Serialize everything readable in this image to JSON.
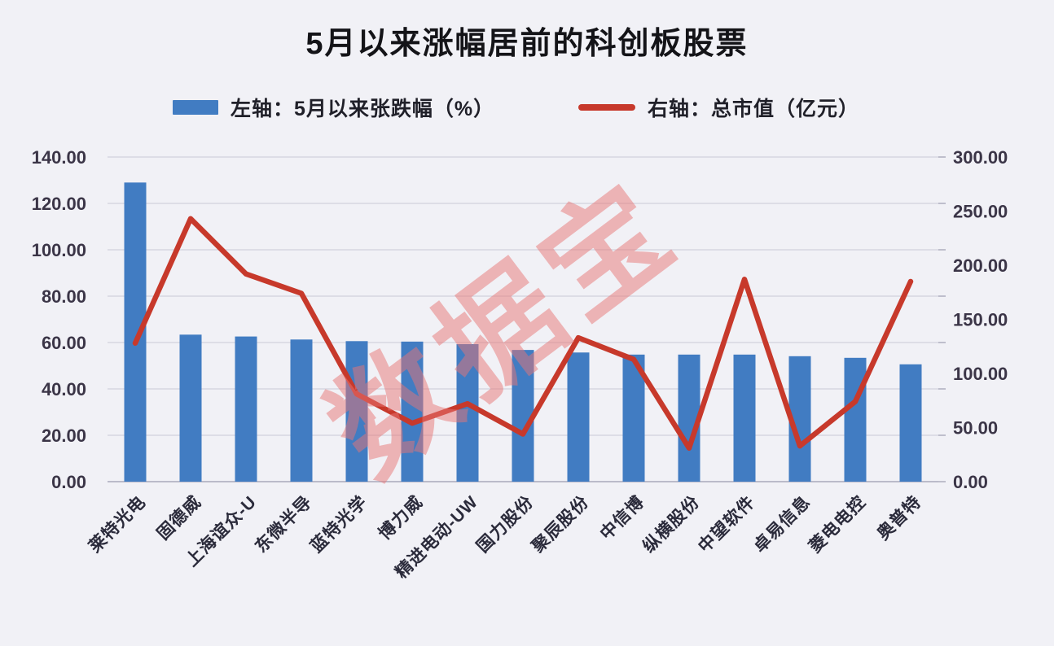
{
  "title": "5月以来涨幅居前的科创板股票",
  "watermark": "数据宝",
  "legend": [
    {
      "label": "左轴：5月以来张跌幅（%）",
      "swatch": "bar"
    },
    {
      "label": "右轴：总市值（亿元）",
      "swatch": "line"
    }
  ],
  "colors": {
    "bar": "#417cc2",
    "line": "#c7392b",
    "background": "#f1f1f6",
    "grid": "#c9c9d6",
    "axis_line": "#a9a9bb",
    "axis_text": "#3b3547",
    "watermark": "#e87676"
  },
  "chart_data": {
    "type": "bar",
    "subtype": "combo-bar-line-dual-axis",
    "title": "5月以来涨幅居前的科创板股票",
    "xlabel": "",
    "ylabel_left": "5月以来张跌幅（%）",
    "ylabel_right": "总市值（亿元）",
    "grid": true,
    "legend_position": "top",
    "categories": [
      "莱特光电",
      "固德威",
      "上海谊众-U",
      "东微半导",
      "蓝特光学",
      "博力威",
      "精进电动-UW",
      "国力股份",
      "聚辰股份",
      "中信博",
      "纵横股份",
      "中望软件",
      "卓易信息",
      "菱电电控",
      "奥普特"
    ],
    "series": [
      {
        "name": "左轴：5月以来张跌幅（%）",
        "type": "bar",
        "axis": "left",
        "values": [
          129.0,
          63.4,
          62.6,
          61.3,
          60.6,
          60.4,
          59.3,
          56.8,
          55.7,
          54.8,
          54.8,
          54.8,
          54.1,
          53.4,
          50.6
        ]
      },
      {
        "name": "右轴：总市值（亿元）",
        "type": "line",
        "axis": "right",
        "values": [
          128,
          243,
          192,
          174,
          81,
          54,
          72,
          44,
          133,
          113,
          31,
          187,
          33,
          74,
          185
        ]
      }
    ],
    "left_axis": {
      "min": 0,
      "max": 140,
      "step": 20,
      "labels": [
        "0.00",
        "20.00",
        "40.00",
        "60.00",
        "80.00",
        "100.00",
        "120.00",
        "140.00"
      ]
    },
    "right_axis": {
      "min": 0,
      "max": 300,
      "step": 50,
      "labels": [
        "0.00",
        "50.00",
        "100.00",
        "150.00",
        "200.00",
        "250.00",
        "300.00"
      ]
    }
  }
}
